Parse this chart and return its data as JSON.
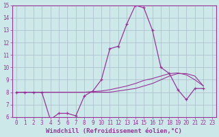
{
  "x": [
    0,
    1,
    2,
    3,
    4,
    5,
    6,
    7,
    8,
    9,
    10,
    11,
    12,
    13,
    14,
    15,
    16,
    17,
    18,
    19,
    20,
    21,
    22,
    23
  ],
  "y_main": [
    8.0,
    8.0,
    8.0,
    8.0,
    5.8,
    6.3,
    6.3,
    6.1,
    7.7,
    8.1,
    9.0,
    11.5,
    11.7,
    13.5,
    15.0,
    14.8,
    13.0,
    10.0,
    9.5,
    8.2,
    7.4,
    8.3,
    8.3,
    null
  ],
  "y_trend1": [
    8.0,
    8.0,
    8.0,
    8.0,
    8.0,
    8.0,
    8.0,
    8.0,
    8.0,
    8.0,
    8.0,
    8.0,
    8.1,
    8.2,
    8.3,
    8.5,
    8.7,
    9.0,
    9.3,
    9.5,
    9.5,
    9.3,
    8.5,
    null
  ],
  "y_trend2": [
    8.0,
    8.0,
    8.0,
    8.0,
    8.0,
    8.0,
    8.0,
    8.0,
    8.0,
    8.05,
    8.1,
    8.2,
    8.35,
    8.5,
    8.7,
    8.95,
    9.1,
    9.3,
    9.5,
    9.55,
    9.4,
    9.0,
    8.5,
    null
  ],
  "line_color": "#993399",
  "bg_color": "#cce8e8",
  "grid_color": "#aabbcc",
  "xlabel": "Windchill (Refroidissement éolien,°C)",
  "xlim": [
    -0.5,
    23.5
  ],
  "ylim": [
    6,
    15
  ],
  "xticks": [
    0,
    1,
    2,
    3,
    4,
    5,
    6,
    7,
    8,
    9,
    10,
    11,
    12,
    13,
    14,
    15,
    16,
    17,
    18,
    19,
    20,
    21,
    22,
    23
  ],
  "yticks": [
    6,
    7,
    8,
    9,
    10,
    11,
    12,
    13,
    14,
    15
  ],
  "tick_fontsize": 5.5,
  "xlabel_fontsize": 6.5
}
